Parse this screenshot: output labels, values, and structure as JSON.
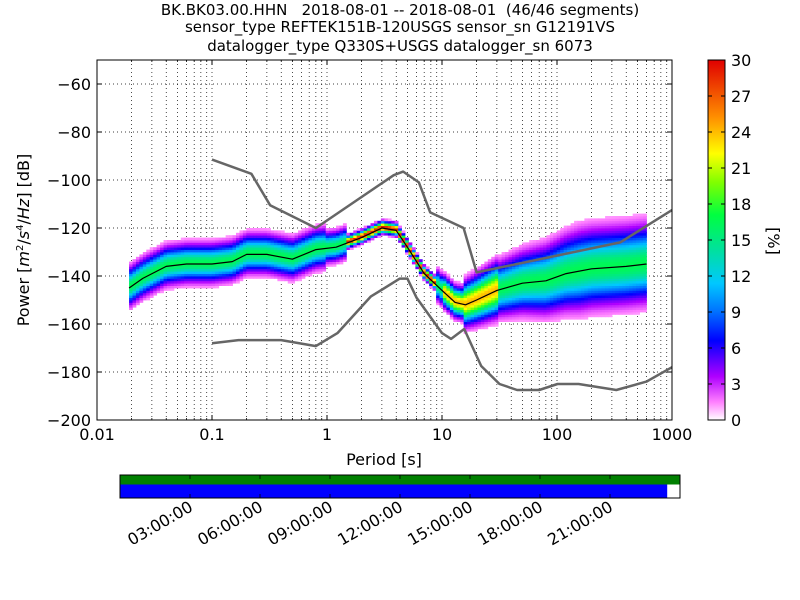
{
  "title_lines": [
    "BK.BK03.00.HHN   2018-08-01 -- 2018-08-01  (46/46 segments)",
    "sensor_type REFTEK151B-120USGS sensor_sn G12191VS",
    "datalogger_type Q330S+USGS datalogger_sn 6073"
  ],
  "chart_data": {
    "type": "heatmap",
    "title": "BK.BK03.00.HHN   2018-08-01 -- 2018-08-01  (46/46 segments)",
    "xlabel": "Period [s]",
    "ylabel": "Power [m²/s⁴/Hz] [dB]",
    "xscale": "log",
    "xlim": [
      0.01,
      1000
    ],
    "ylim": [
      -200,
      -50
    ],
    "x_ticks": [
      "0.01",
      "0.1",
      "1",
      "10",
      "100",
      "1000"
    ],
    "y_ticks": [
      "−60",
      "−80",
      "−100",
      "−120",
      "−140",
      "−160",
      "−180",
      "−200"
    ],
    "colorbar": {
      "label": "[%]",
      "range": [
        0,
        30
      ],
      "ticks": [
        "0",
        "3",
        "6",
        "9",
        "12",
        "15",
        "18",
        "21",
        "24",
        "27",
        "30"
      ]
    },
    "grid": true,
    "mode_curve": {
      "period": [
        0.019,
        0.025,
        0.04,
        0.06,
        0.1,
        0.15,
        0.2,
        0.3,
        0.5,
        0.8,
        1.2,
        2,
        3,
        4,
        5,
        7,
        10,
        13,
        16,
        20,
        30,
        50,
        80,
        120,
        200,
        400,
        600
      ],
      "power": [
        -145,
        -141,
        -136,
        -135,
        -135,
        -134,
        -131,
        -131,
        -133,
        -129,
        -128,
        -124,
        -120,
        -121,
        -128,
        -139,
        -146,
        -151,
        -152,
        -150,
        -146,
        -143,
        -142,
        -139,
        -137,
        -136,
        -135
      ]
    },
    "nhnm": {
      "period": [
        0.1,
        0.22,
        0.32,
        0.8,
        3.8,
        4.6,
        6.3,
        7.9,
        15.4,
        20,
        354.8,
        1000
      ],
      "power": [
        -91.5,
        -97.4,
        -110.5,
        -120,
        -98,
        -96.5,
        -101,
        -113.5,
        -120,
        -138.5,
        -126,
        -112.5
      ]
    },
    "nlnm": {
      "period": [
        0.1,
        0.17,
        0.4,
        0.8,
        1.24,
        2.4,
        4.3,
        5,
        6,
        10,
        12,
        15.6,
        21.9,
        31.6,
        45,
        70,
        101,
        154,
        328,
        600,
        1000
      ],
      "power": [
        -168,
        -166.7,
        -166.7,
        -169.2,
        -163.7,
        -148.6,
        -141.1,
        -141.1,
        -149,
        -163.8,
        -166.2,
        -162.1,
        -177.5,
        -185,
        -187.5,
        -187.5,
        -185,
        -185,
        -187.5,
        -184,
        -178
      ]
    }
  },
  "timeline": {
    "time_ticks": [
      "03:00:00",
      "06:00:00",
      "09:00:00",
      "12:00:00",
      "15:00:00",
      "18:00:00",
      "21:00:00"
    ],
    "data_coverage_fraction": 1.0,
    "psd_coverage_fraction": 0.978,
    "colors": {
      "data": "#008000",
      "psd": "#0000ff"
    }
  }
}
